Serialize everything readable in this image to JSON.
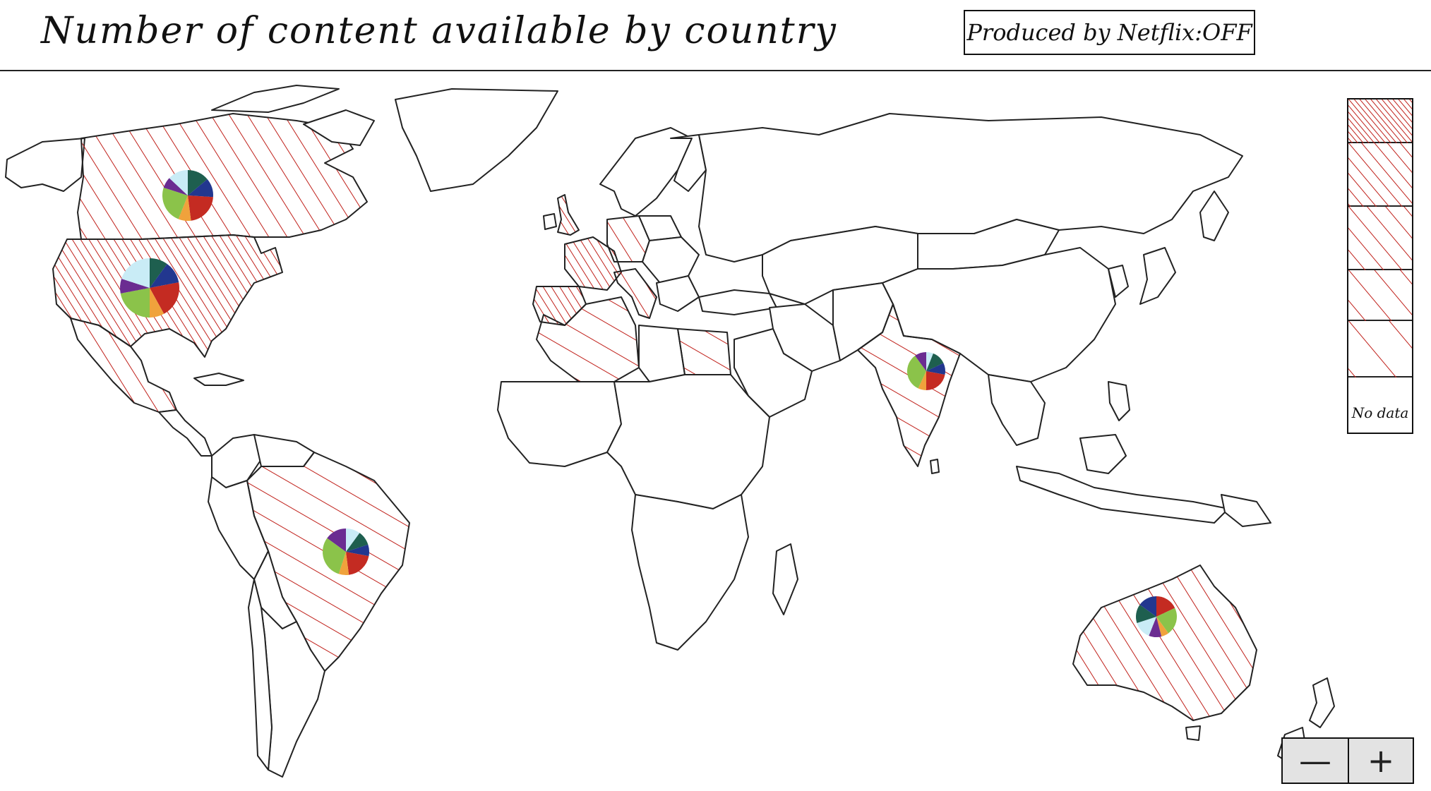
{
  "header": {
    "title": "Number of content available by country",
    "producer_toggle_label": "Produced by Netflix:OFF"
  },
  "legend": {
    "no_data_label": "No data",
    "hatch_color": "#c0201a"
  },
  "zoom": {
    "zoom_out_label": "—",
    "zoom_in_label": "+"
  },
  "pie_colors": {
    "dark_green": "#1e5f4f",
    "navy": "#22378f",
    "red": "#c42b22",
    "orange": "#f0a23c",
    "lime": "#8bc34a",
    "purple": "#6b2c91",
    "light_blue": "#c9ecf6"
  },
  "countries_with_data": [
    {
      "name": "Canada",
      "pie": [
        [
          "dark_green",
          0.14
        ],
        [
          "navy",
          0.12
        ],
        [
          "red",
          0.22
        ],
        [
          "orange",
          0.08
        ],
        [
          "lime",
          0.24
        ],
        [
          "purple",
          0.07
        ],
        [
          "light_blue",
          0.13
        ]
      ]
    },
    {
      "name": "United States",
      "pie": [
        [
          "dark_green",
          0.1
        ],
        [
          "navy",
          0.12
        ],
        [
          "red",
          0.2
        ],
        [
          "orange",
          0.08
        ],
        [
          "lime",
          0.22
        ],
        [
          "purple",
          0.08
        ],
        [
          "light_blue",
          0.2
        ]
      ]
    },
    {
      "name": "Brazil",
      "pie": [
        [
          "light_blue",
          0.1
        ],
        [
          "dark_green",
          0.1
        ],
        [
          "navy",
          0.08
        ],
        [
          "red",
          0.2
        ],
        [
          "orange",
          0.07
        ],
        [
          "lime",
          0.3
        ],
        [
          "purple",
          0.15
        ]
      ]
    },
    {
      "name": "India",
      "pie": [
        [
          "light_blue",
          0.06
        ],
        [
          "dark_green",
          0.12
        ],
        [
          "navy",
          0.1
        ],
        [
          "red",
          0.22
        ],
        [
          "orange",
          0.07
        ],
        [
          "lime",
          0.33
        ],
        [
          "purple",
          0.1
        ]
      ]
    },
    {
      "name": "Australia",
      "pie": [
        [
          "red",
          0.18
        ],
        [
          "lime",
          0.22
        ],
        [
          "orange",
          0.06
        ],
        [
          "purple",
          0.1
        ],
        [
          "light_blue",
          0.14
        ],
        [
          "dark_green",
          0.15
        ],
        [
          "navy",
          0.15
        ]
      ]
    },
    {
      "name": "Europe"
    },
    {
      "name": "North Africa"
    },
    {
      "name": "Mexico"
    }
  ]
}
